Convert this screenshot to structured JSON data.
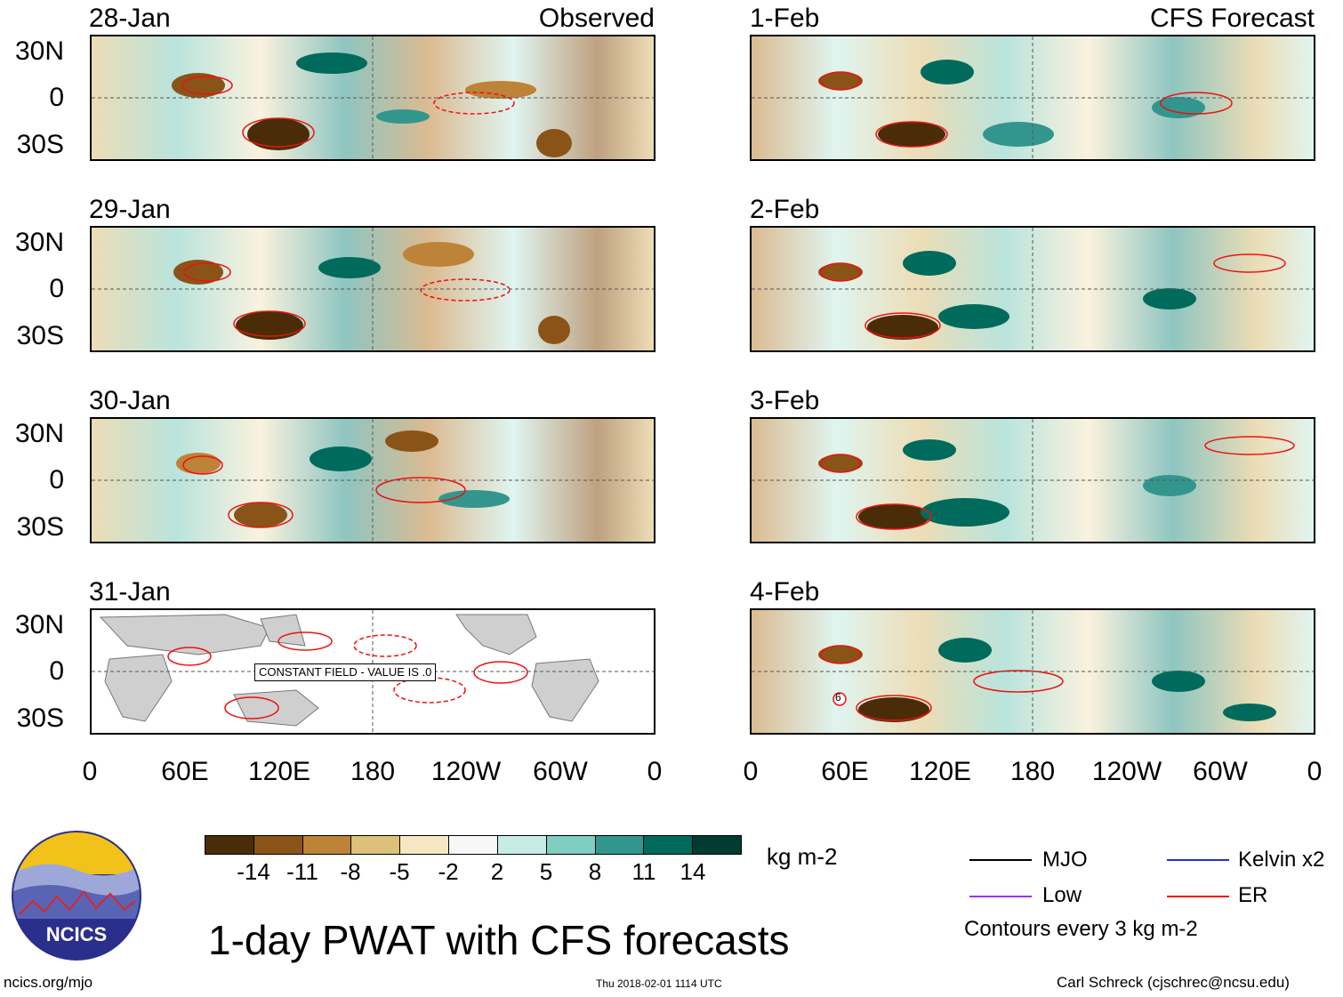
{
  "header": {
    "left_label": "Observed",
    "right_label": "CFS Forecast"
  },
  "panels_left": [
    {
      "date": "28-Jan"
    },
    {
      "date": "29-Jan"
    },
    {
      "date": "30-Jan"
    },
    {
      "date": "31-Jan",
      "note": "CONSTANT FIELD - VALUE IS .0"
    }
  ],
  "panels_right": [
    {
      "date": "1-Feb"
    },
    {
      "date": "2-Feb"
    },
    {
      "date": "3-Feb"
    },
    {
      "date": "4-Feb",
      "marker": "6"
    }
  ],
  "lat_labels": [
    "30N",
    "0",
    "30S"
  ],
  "lon_labels": [
    "0",
    "60E",
    "120E",
    "180",
    "120W",
    "60W",
    "0"
  ],
  "colorbar": {
    "labels": [
      "-14",
      "-11",
      "-8",
      "-5",
      "-2",
      "2",
      "5",
      "8",
      "11",
      "14"
    ],
    "colors": [
      "#4a2d08",
      "#8a5418",
      "#bd8338",
      "#ddc17a",
      "#f6e7c4",
      "#f7f7f7",
      "#c6ece4",
      "#80cdc1",
      "#33968e",
      "#006b5c",
      "#003c30"
    ],
    "units": "kg m-2"
  },
  "legend": {
    "items": [
      {
        "name": "MJO",
        "color": "#000000"
      },
      {
        "name": "Kelvin x2",
        "color": "#2233cc"
      },
      {
        "name": "Low",
        "color": "#9933ee"
      },
      {
        "name": "ER",
        "color": "#ee1111"
      }
    ],
    "note": "Contours every 3 kg m-2"
  },
  "logo": {
    "text": "NCICS"
  },
  "title": "1-day PWAT with CFS forecasts",
  "footer": {
    "url": "ncics.org/mjo",
    "timestamp": "Thu 2018-02-01 1114 UTC",
    "credit": "Carl Schreck (cjschrec@ncsu.edu)"
  }
}
